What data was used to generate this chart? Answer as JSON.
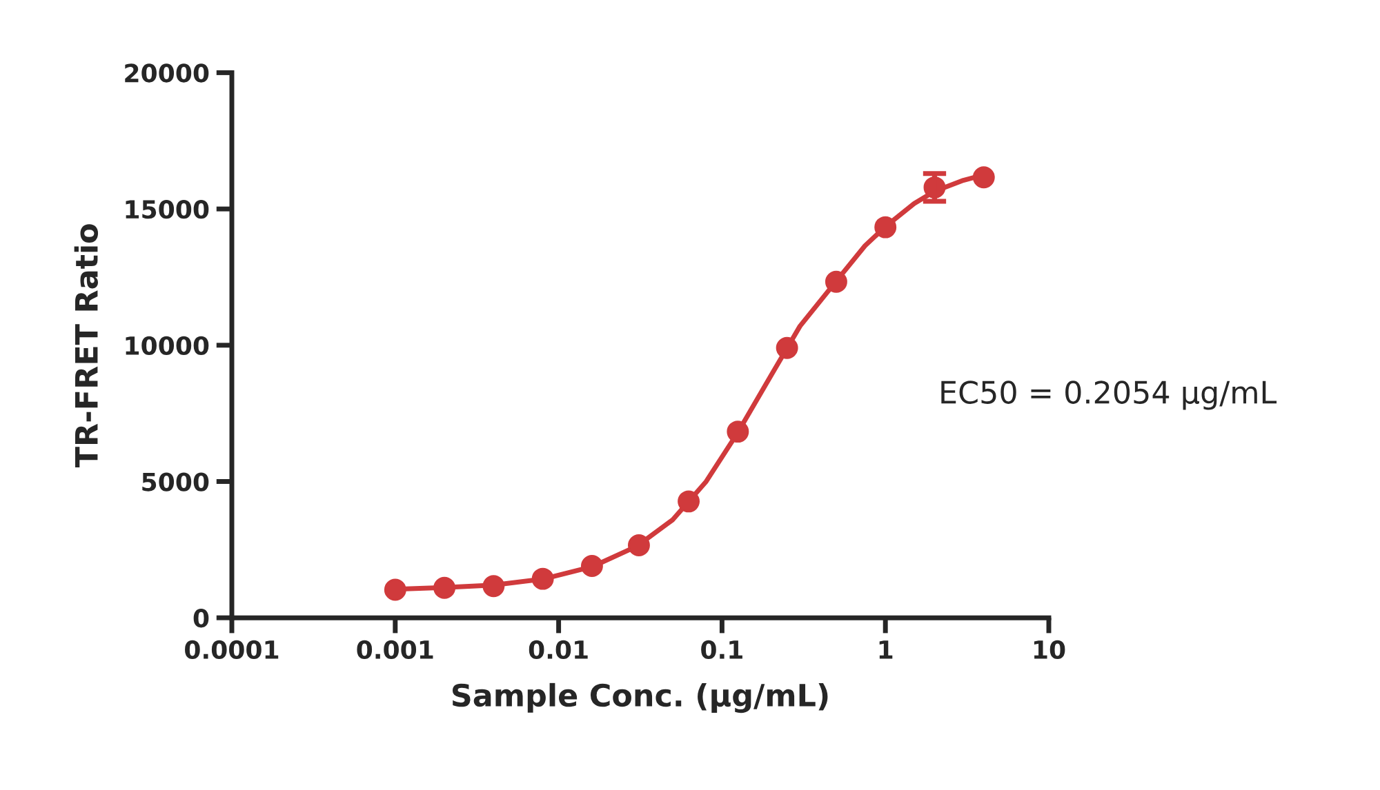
{
  "chart_data": {
    "type": "scatter",
    "xlabel": "Sample Conc. (μg/mL)",
    "ylabel": "TR-FRET Ratio",
    "log": "x",
    "xlim": [
      0.0001,
      10
    ],
    "xticks": [
      0.0001,
      0.001,
      0.01,
      0.1,
      1,
      10
    ],
    "ylim": [
      0,
      20000
    ],
    "yticks": [
      0,
      5000,
      10000,
      15000,
      20000
    ],
    "grid": false,
    "legend": false,
    "annotations": [
      "EC50 = 0.2054 μg/mL"
    ],
    "series": [
      {
        "color": "#d03a3c",
        "marker": "circle",
        "x": [
          0.001,
          0.002,
          0.004,
          0.008,
          0.016,
          0.031,
          0.0625,
          0.125,
          0.25,
          0.5,
          1,
          2,
          4
        ],
        "values": [
          1030,
          1100,
          1160,
          1430,
          1900,
          2660,
          4270,
          6830,
          9900,
          12330,
          14330,
          15790,
          16160
        ],
        "errors": [
          null,
          null,
          null,
          null,
          null,
          null,
          null,
          null,
          null,
          null,
          null,
          510,
          null
        ]
      },
      {
        "type": "line",
        "color": "#d03a3c",
        "line_style": "solid",
        "x": [
          0.001,
          0.002,
          0.004,
          0.008,
          0.016,
          0.03,
          0.05,
          0.08,
          0.125,
          0.2,
          0.3,
          0.5,
          0.75,
          1,
          1.5,
          2,
          3,
          4
        ],
        "values": [
          1050,
          1110,
          1200,
          1420,
          1870,
          2620,
          3600,
          5000,
          6800,
          8900,
          10700,
          12350,
          13650,
          14350,
          15200,
          15650,
          16050,
          16250
        ]
      }
    ]
  }
}
